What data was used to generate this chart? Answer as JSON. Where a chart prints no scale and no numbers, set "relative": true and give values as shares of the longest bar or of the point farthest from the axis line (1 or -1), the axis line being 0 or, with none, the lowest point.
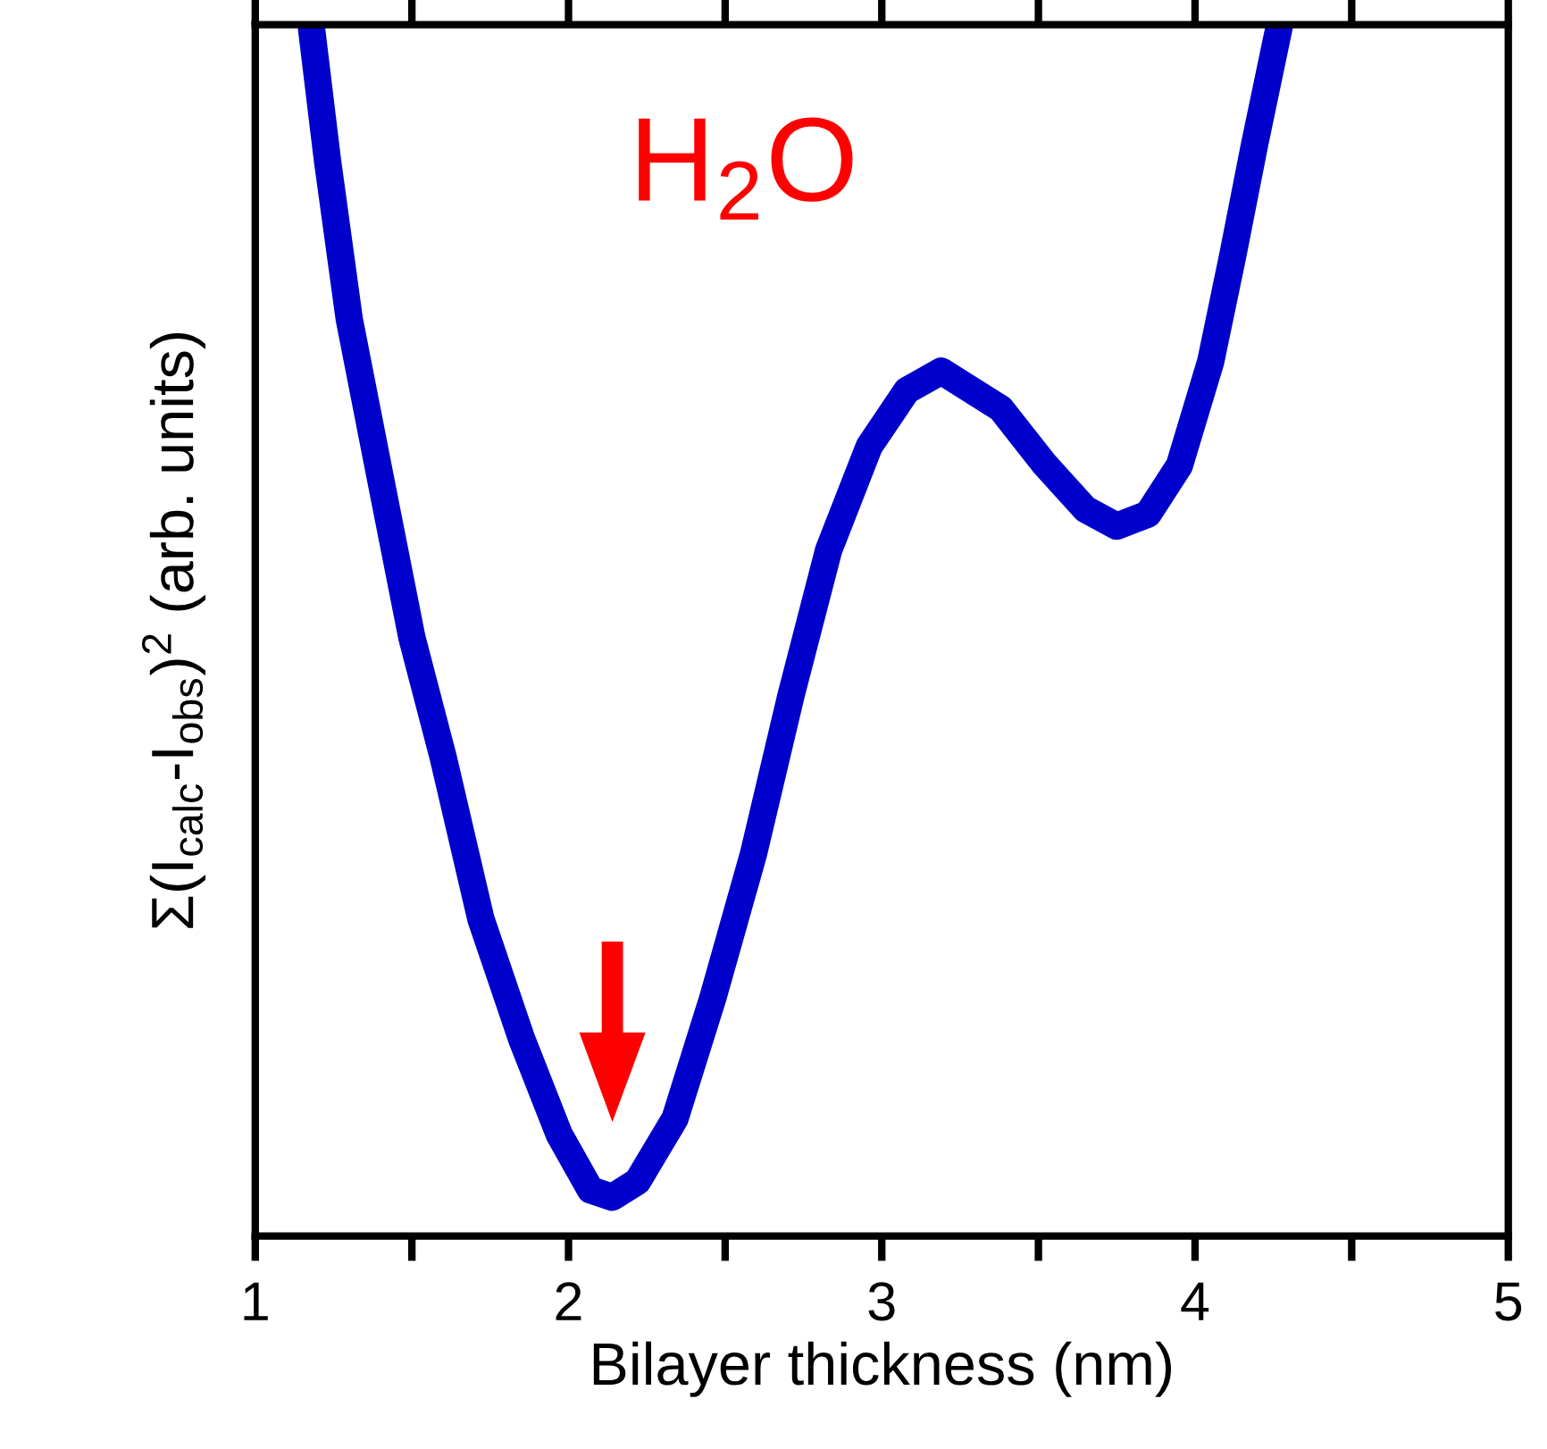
{
  "chart_data": {
    "type": "line",
    "relative": true,
    "xlabel": "Bilayer thickness (nm)",
    "ylabel": "Σ(I$_{calc}$-I$_{obs}$)$^{2}$ (arb. units)",
    "annotations": [
      "H$_{2}$O"
    ],
    "xlim": [
      1,
      5
    ],
    "xticks": [
      1,
      {
        "value": 1.5,
        "label": null
      },
      2,
      {
        "value": 2.5,
        "label": null
      },
      3,
      {
        "value": 3.5,
        "label": null
      },
      4,
      {
        "value": 4.5,
        "label": null
      },
      5
    ],
    "grid": false,
    "legend": false,
    "line_style": "solid",
    "series": [
      {
        "color": "#0000cc",
        "x": [
          1.18,
          1.23,
          1.3,
          1.4,
          1.5,
          1.6,
          1.72,
          1.85,
          1.97,
          2.07,
          2.14,
          2.22,
          2.34,
          2.46,
          2.59,
          2.71,
          2.83,
          2.96,
          3.08,
          3.19,
          3.38,
          3.52,
          3.65,
          3.75,
          3.85,
          3.95,
          4.05,
          4.12,
          4.19,
          4.27
        ],
        "values": [
          0.996,
          0.889,
          0.757,
          0.625,
          0.494,
          0.395,
          0.262,
          0.163,
          0.084,
          0.038,
          0.032,
          0.045,
          0.097,
          0.196,
          0.315,
          0.446,
          0.566,
          0.652,
          0.698,
          0.714,
          0.683,
          0.637,
          0.6,
          0.586,
          0.596,
          0.636,
          0.722,
          0.809,
          0.901,
          1.0
        ]
      }
    ]
  }
}
